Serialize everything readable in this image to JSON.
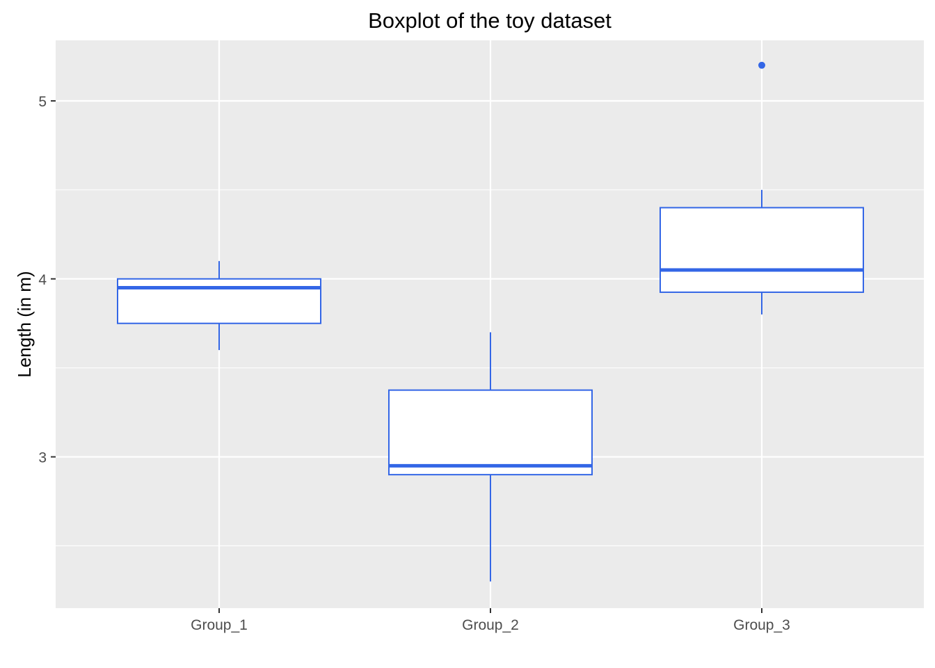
{
  "chart_data": {
    "type": "boxplot",
    "title": "Boxplot of the toy dataset",
    "xlabel": "",
    "ylabel": "Length (in m)",
    "categories": [
      "Group_1",
      "Group_2",
      "Group_3"
    ],
    "ylim": [
      2.15,
      5.34
    ],
    "y_ticks": [
      3,
      4,
      5
    ],
    "y_tick_labels": [
      "3",
      "4",
      "5"
    ],
    "y_minor_ticks": [
      2.5,
      3.5,
      4.5
    ],
    "grid": true,
    "legend": "none",
    "colors": {
      "box_outline": "#3366e6",
      "box_fill": "#ffffff",
      "panel_background": "#ebebeb",
      "grid_line": "#ffffff",
      "tick_text": "#4d4d4d",
      "tick_mark": "#333333"
    },
    "boxes": [
      {
        "category": "Group_1",
        "whisker_low": 3.6,
        "q1": 3.75,
        "median": 3.95,
        "q3": 4.0,
        "whisker_high": 4.1,
        "outliers": []
      },
      {
        "category": "Group_2",
        "whisker_low": 2.3,
        "q1": 2.9,
        "median": 2.95,
        "q3": 3.375,
        "whisker_high": 3.7,
        "outliers": []
      },
      {
        "category": "Group_3",
        "whisker_low": 3.8,
        "q1": 3.925,
        "median": 4.05,
        "q3": 4.4,
        "whisker_high": 4.5,
        "outliers": [
          5.2
        ]
      }
    ]
  }
}
